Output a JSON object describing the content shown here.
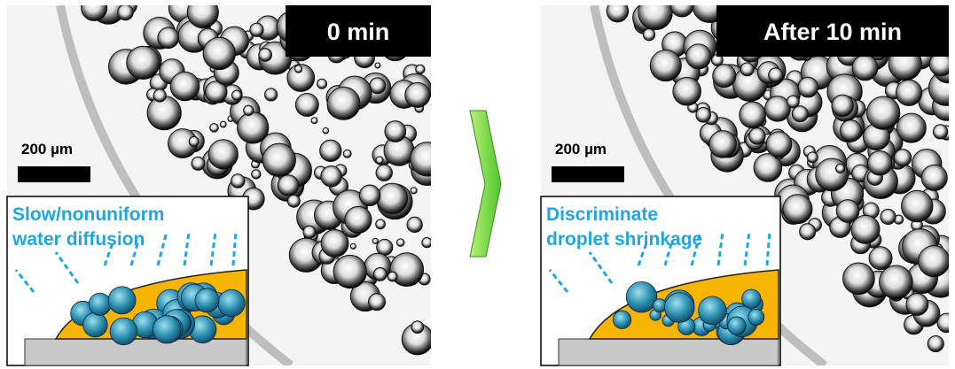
{
  "panels": [
    {
      "time_label": "0 min",
      "scale_label": "200 µm",
      "inset_lines": [
        "Slow/nonuniform",
        "water diffusion"
      ]
    },
    {
      "time_label": "After 10 min",
      "scale_label": "200 µm",
      "inset_lines": [
        "Discriminate",
        "droplet shrinkage"
      ]
    }
  ]
}
